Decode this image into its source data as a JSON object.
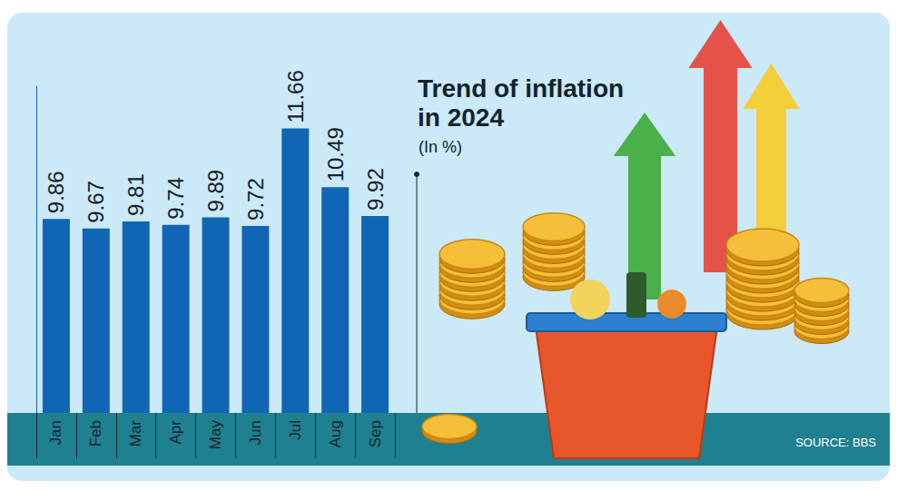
{
  "chart_data": {
    "type": "bar",
    "title": "Trend of inflation in 2024",
    "subtitle": "(In %)",
    "source": "SOURCE: BBS",
    "categories": [
      "Jan",
      "Feb",
      "Mar",
      "Apr",
      "May",
      "Jun",
      "Jul",
      "Aug",
      "Sep"
    ],
    "values": [
      9.86,
      9.67,
      9.81,
      9.74,
      9.89,
      9.72,
      11.66,
      10.49,
      9.92
    ],
    "color": "#1066b4",
    "ylim": [
      6,
      12.5
    ],
    "grid": false,
    "data_labels": true,
    "tick_labels": "x"
  }
}
